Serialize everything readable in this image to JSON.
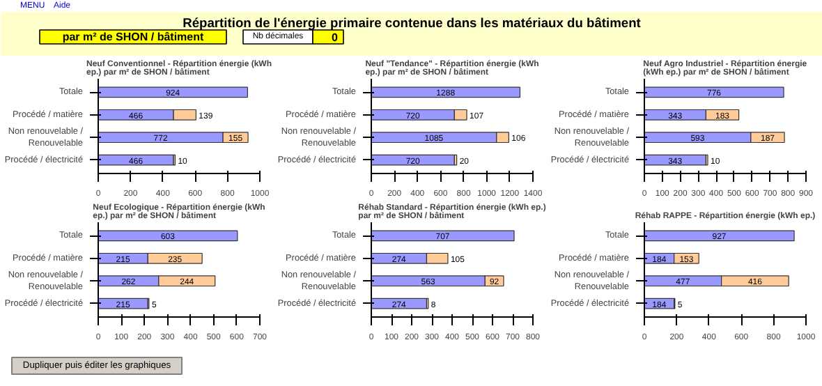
{
  "chart_data": [
    {
      "type": "other",
      "title": "Répartition de l'énergie primaire contenue dans les matériaux du bâtiment",
      "annotations": [
        "MENU",
        "Aide",
        "par m² de SHON / bâtiment",
        "Nb décimales",
        "0"
      ]
    },
    {
      "type": "bar",
      "orientation": "horizontal",
      "stacked": true,
      "data_labels": true,
      "title": "Neuf Conventionnel - Répartition énergie (kWh ep.) par m² de SHON / bâtiment",
      "categories": [
        "Totale",
        "Procédé / matière",
        "Non renouvelable / Renouvelable",
        "Procédé / électricité"
      ],
      "xlim": [
        0,
        1000
      ],
      "xticks": [
        0,
        200,
        400,
        600,
        800,
        1000
      ],
      "series": [
        {
          "color": "#9999ff",
          "values": [
            924,
            466,
            772,
            466
          ]
        },
        {
          "color": "#ffcc99",
          "values": [
            null,
            139,
            155,
            10
          ]
        }
      ]
    },
    {
      "type": "bar",
      "orientation": "horizontal",
      "stacked": true,
      "data_labels": true,
      "title": "Neuf \"Tendance\" - Répartition énergie (kWh ep.) par m² de SHON / bâtiment",
      "categories": [
        "Totale",
        "Procédé / matière",
        "Non renouvelable / Renouvelable",
        "Procédé / électricité"
      ],
      "xlim": [
        0,
        1400
      ],
      "xticks": [
        0,
        200,
        400,
        600,
        800,
        1000,
        1200,
        1400
      ],
      "series": [
        {
          "color": "#9999ff",
          "values": [
            1288,
            720,
            1085,
            720
          ]
        },
        {
          "color": "#ffcc99",
          "values": [
            null,
            107,
            106,
            20
          ]
        }
      ]
    },
    {
      "type": "bar",
      "orientation": "horizontal",
      "stacked": true,
      "data_labels": true,
      "title": "Neuf Agro Industriel - Répartition énergie (kWh ep.) par m² de SHON / bâtiment",
      "categories": [
        "Totale",
        "Procédé / matière",
        "Non renouvelable / Renouvelable",
        "Procédé / électricité"
      ],
      "xlim": [
        0,
        900
      ],
      "xticks": [
        0,
        100,
        200,
        300,
        400,
        500,
        600,
        700,
        800,
        900
      ],
      "series": [
        {
          "color": "#9999ff",
          "values": [
            776,
            343,
            593,
            343
          ]
        },
        {
          "color": "#ffcc99",
          "values": [
            null,
            183,
            187,
            10
          ]
        }
      ]
    },
    {
      "type": "bar",
      "orientation": "horizontal",
      "stacked": true,
      "data_labels": true,
      "title": "Neuf Ecologique - Répartition énergie (kWh ep.) par m² de SHON / bâtiment",
      "categories": [
        "Totale",
        "Procédé / matière",
        "Non renouvelable / Renouvelable",
        "Procédé / électricité"
      ],
      "xlim": [
        0,
        700
      ],
      "xticks": [
        0,
        100,
        200,
        300,
        400,
        500,
        600,
        700
      ],
      "series": [
        {
          "color": "#9999ff",
          "values": [
            603,
            215,
            262,
            215
          ]
        },
        {
          "color": "#ffcc99",
          "values": [
            null,
            235,
            244,
            5
          ]
        }
      ]
    },
    {
      "type": "bar",
      "orientation": "horizontal",
      "stacked": true,
      "data_labels": true,
      "title": "Réhab Standard - Répartition énergie (kWh ep.) par m² de SHON / bâtiment",
      "categories": [
        "Totale",
        "Procédé / matière",
        "Non renouvelable / Renouvelable",
        "Procédé / électricité"
      ],
      "xlim": [
        0,
        800
      ],
      "xticks": [
        0,
        100,
        200,
        300,
        400,
        500,
        600,
        700,
        800
      ],
      "series": [
        {
          "color": "#9999ff",
          "values": [
            707,
            274,
            563,
            274
          ]
        },
        {
          "color": "#ffcc99",
          "values": [
            null,
            105,
            92,
            8
          ]
        }
      ]
    },
    {
      "type": "bar",
      "orientation": "horizontal",
      "stacked": true,
      "data_labels": true,
      "title": "Réhab RAPPE - Répartition énergie (kWh ep.)",
      "categories": [
        "Totale",
        "Procédé / matière",
        "Non renouvelable / Renouvelable",
        "Procédé / électricité"
      ],
      "xlim": [
        0,
        1000
      ],
      "xticks": [
        0,
        200,
        400,
        600,
        800,
        1000
      ],
      "series": [
        {
          "color": "#9999ff",
          "values": [
            927,
            184,
            477,
            184
          ]
        },
        {
          "color": "#ffcc99",
          "values": [
            null,
            153,
            416,
            5
          ]
        }
      ]
    },
    {
      "type": "other",
      "annotations": [
        "Dupliquer puis éditer les graphiques"
      ]
    }
  ]
}
